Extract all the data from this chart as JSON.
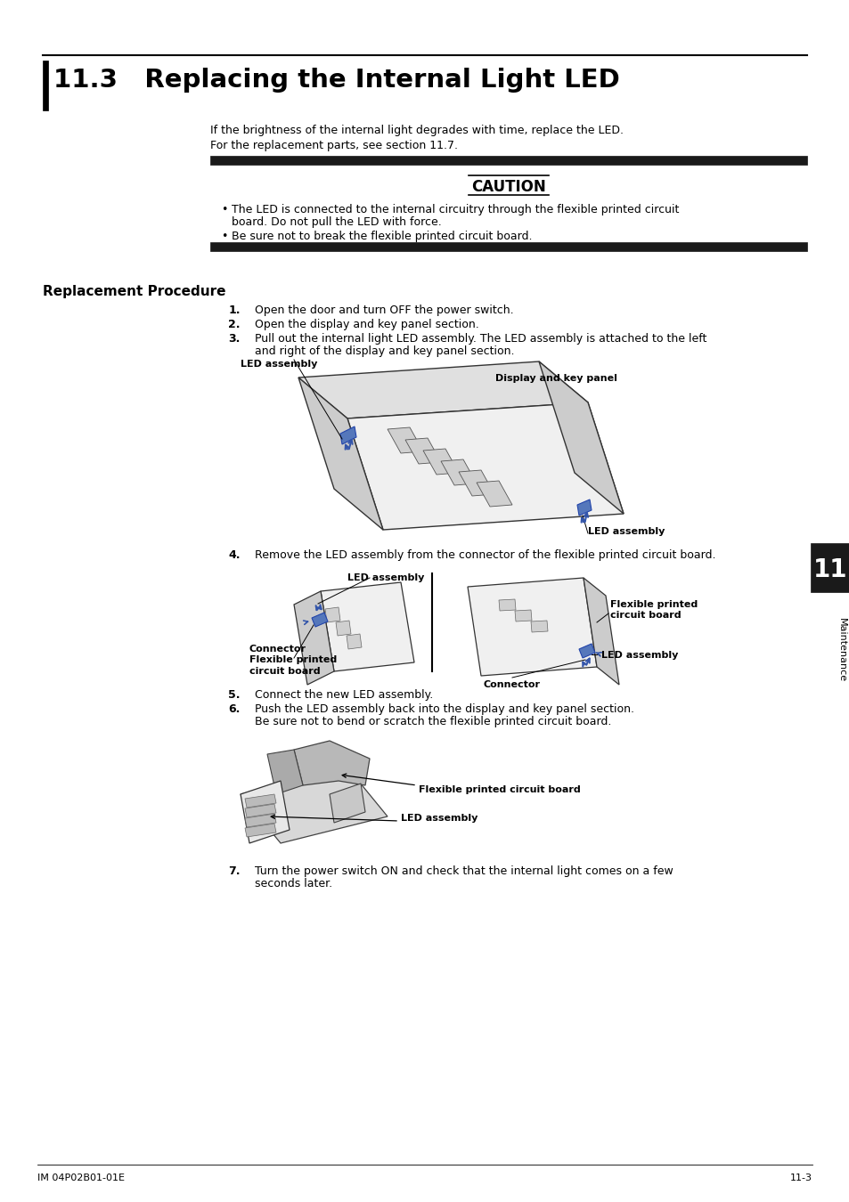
{
  "title": "11.3   Replacing the Internal Light LED",
  "background_color": "#ffffff",
  "text_color": "#000000",
  "page_number": "11-3",
  "footer_left": "IM 04P02B01-01E",
  "section_label": "11",
  "section_tab_label": "Maintenance",
  "intro_line1": "If the brightness of the internal light degrades with time, replace the LED.",
  "intro_line2": "For the replacement parts, see section 11.7.",
  "caution_title": "CAUTION",
  "caution_bullet1": "The LED is connected to the internal circuitry through the flexible printed circuit",
  "caution_bullet1b": "board. Do not pull the LED with force.",
  "caution_bullet2": "Be sure not to break the flexible printed circuit board.",
  "replacement_procedure_title": "Replacement Procedure",
  "step1": "Open the door and turn OFF the power switch.",
  "step2": "Open the display and key panel section.",
  "step3a": "Pull out the internal light LED assembly. The LED assembly is attached to the left",
  "step3b": "and right of the display and key panel section.",
  "step4": "Remove the LED assembly from the connector of the flexible printed circuit board.",
  "step5": "Connect the new LED assembly.",
  "step6a": "Push the LED assembly back into the display and key panel section.",
  "step6b": "Be sure not to bend or scratch the flexible printed circuit board.",
  "step7a": "Turn the power switch ON and check that the internal light comes on a few",
  "step7b": "seconds later.",
  "label_led_assembly_top": "LED assembly",
  "label_display_key_panel": "Display and key panel",
  "label_led_assembly_bot": "LED assembly",
  "label_led_assembly_f2": "LED assembly",
  "label_flexible_printed": "Flexible printed\ncircuit board",
  "label_connector_flex": "Connector\nFlexible printed\ncircuit board",
  "label_led_assembly_f2r": "LED assembly",
  "label_connector": "Connector",
  "label_flex_f3": "Flexible printed circuit board",
  "label_led_f3": "LED assembly",
  "blue": "#3355aa",
  "black": "#000000",
  "gray_light": "#e8e8e8",
  "gray_mid": "#cccccc",
  "gray_dark": "#999999",
  "tab_bg": "#1a1a1a"
}
